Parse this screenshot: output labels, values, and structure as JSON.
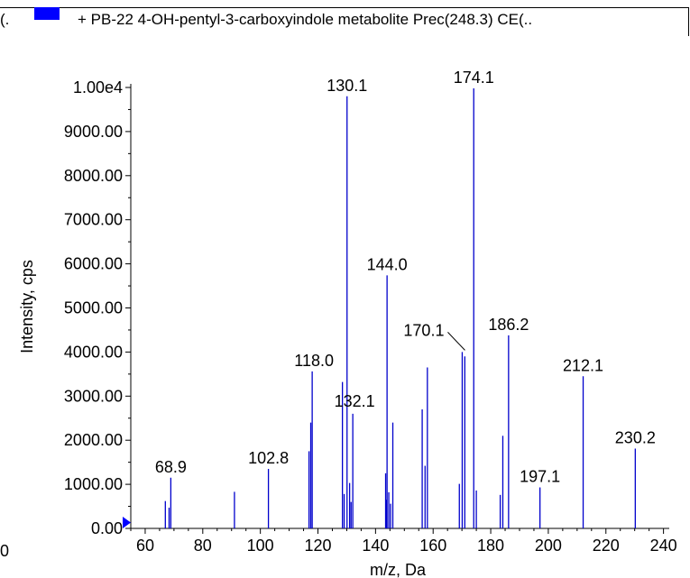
{
  "legend": {
    "prefix": "(.",
    "text": "+ PB-22 4-OH-pentyl-3-carboxyindole metabolite Prec(248.3) CE(..",
    "swatch_color": "#0000ff"
  },
  "chart_data": {
    "type": "bar",
    "xlabel": "m/z, Da",
    "ylabel": "Intensity, cps",
    "xlim": [
      55,
      242
    ],
    "ylim": [
      0,
      10000
    ],
    "x_ticks": [
      "60",
      "80",
      "100",
      "120",
      "140",
      "160",
      "180",
      "200",
      "220",
      "240"
    ],
    "x_ticks_values": [
      60,
      80,
      100,
      120,
      140,
      160,
      180,
      200,
      220,
      240
    ],
    "x_edge_label": "0",
    "y_ticks": [
      "0.00",
      "1000.00",
      "2000.00",
      "3000.00",
      "4000.00",
      "5000.00",
      "6000.00",
      "7000.00",
      "8000.00",
      "9000.00",
      "1.00e4"
    ],
    "y_ticks_values": [
      0,
      1000,
      2000,
      3000,
      4000,
      5000,
      6000,
      7000,
      8000,
      9000,
      10000
    ],
    "line_color": "#0000cc",
    "peaks": [
      {
        "mz": 67.0,
        "intensity": 620
      },
      {
        "mz": 68.3,
        "intensity": 470
      },
      {
        "mz": 68.9,
        "intensity": 1150
      },
      {
        "mz": 91.0,
        "intensity": 830
      },
      {
        "mz": 102.8,
        "intensity": 1350
      },
      {
        "mz": 116.9,
        "intensity": 1750
      },
      {
        "mz": 117.5,
        "intensity": 2400
      },
      {
        "mz": 118.0,
        "intensity": 3560
      },
      {
        "mz": 128.5,
        "intensity": 3320
      },
      {
        "mz": 129.1,
        "intensity": 780
      },
      {
        "mz": 130.1,
        "intensity": 9800
      },
      {
        "mz": 131.0,
        "intensity": 1030
      },
      {
        "mz": 131.5,
        "intensity": 600
      },
      {
        "mz": 132.1,
        "intensity": 2600
      },
      {
        "mz": 143.5,
        "intensity": 1250
      },
      {
        "mz": 143.8,
        "intensity": 650
      },
      {
        "mz": 144.0,
        "intensity": 5740
      },
      {
        "mz": 144.6,
        "intensity": 820
      },
      {
        "mz": 145.2,
        "intensity": 560
      },
      {
        "mz": 146.0,
        "intensity": 2400
      },
      {
        "mz": 156.2,
        "intensity": 2700
      },
      {
        "mz": 157.2,
        "intensity": 1420
      },
      {
        "mz": 158.0,
        "intensity": 3650
      },
      {
        "mz": 169.1,
        "intensity": 1010
      },
      {
        "mz": 170.1,
        "intensity": 4000
      },
      {
        "mz": 171.0,
        "intensity": 3900
      },
      {
        "mz": 174.1,
        "intensity": 9980
      },
      {
        "mz": 175.0,
        "intensity": 860
      },
      {
        "mz": 183.3,
        "intensity": 760
      },
      {
        "mz": 184.2,
        "intensity": 2100
      },
      {
        "mz": 186.2,
        "intensity": 4380
      },
      {
        "mz": 197.1,
        "intensity": 930
      },
      {
        "mz": 212.1,
        "intensity": 3450
      },
      {
        "mz": 230.2,
        "intensity": 1810
      }
    ],
    "annotations": [
      {
        "label": "68.9",
        "mz": 68.9
      },
      {
        "label": "102.8",
        "mz": 102.8
      },
      {
        "label": "118.0",
        "mz": 118.0
      },
      {
        "label": "130.1",
        "mz": 130.1
      },
      {
        "label": "132.1",
        "mz": 132.1
      },
      {
        "label": "144.0",
        "mz": 144.0
      },
      {
        "label": "170.1",
        "mz": 170.1
      },
      {
        "label": "174.1",
        "mz": 174.1
      },
      {
        "label": "186.2",
        "mz": 186.2
      },
      {
        "label": "197.1",
        "mz": 197.1
      },
      {
        "label": "212.1",
        "mz": 212.1
      },
      {
        "label": "230.2",
        "mz": 230.2
      }
    ]
  }
}
